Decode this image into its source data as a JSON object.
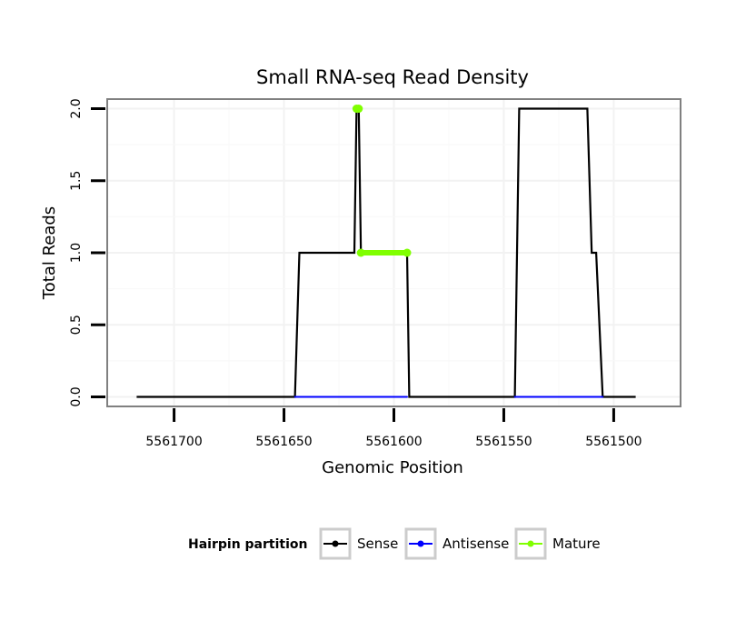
{
  "chart_data": {
    "type": "line",
    "title": "Small RNA-seq Read Density",
    "xlabel": "Genomic Position",
    "ylabel": "Total Reads",
    "x_reversed": true,
    "xlim": [
      5561730,
      5561470
    ],
    "ylim": [
      -0.06,
      2.06
    ],
    "x_ticks": [
      5561700,
      5561650,
      5561600,
      5561550,
      5561500
    ],
    "x_tick_labels": [
      "5561700",
      "5561650",
      "5561600",
      "5561550",
      "5561500"
    ],
    "y_ticks": [
      0,
      0.5,
      1,
      1.5,
      2
    ],
    "y_tick_labels": [
      "0.0",
      "0.5",
      "1.0",
      "1.5",
      "2.0"
    ],
    "grid": true,
    "legend": {
      "title": "Hairpin partition",
      "position": "bottom",
      "entries": [
        {
          "label": "Sense",
          "color": "#000000"
        },
        {
          "label": "Antisense",
          "color": "#0000ff"
        },
        {
          "label": "Mature",
          "color": "#80ff00"
        }
      ]
    },
    "series": [
      {
        "name": "Sense",
        "color": "#000000",
        "x": [
          5561717,
          5561645,
          5561643,
          5561618,
          5561617,
          5561616,
          5561615,
          5561594,
          5561593,
          5561545,
          5561543,
          5561512,
          5561510,
          5561508,
          5561505,
          5561490
        ],
        "y": [
          0,
          0,
          1,
          1,
          2,
          2,
          1,
          1,
          0,
          0,
          2,
          2,
          1,
          1,
          0,
          0
        ]
      },
      {
        "name": "Antisense",
        "color": "#0000ff",
        "segments": [
          {
            "x": [
              5561645,
              5561594
            ],
            "y": [
              0,
              0
            ]
          },
          {
            "x": [
              5561545,
              5561505
            ],
            "y": [
              0,
              0
            ]
          }
        ]
      },
      {
        "name": "Mature",
        "color": "#80ff00",
        "segments": [
          {
            "x": [
              5561617,
              5561616
            ],
            "y": [
              2,
              2
            ]
          },
          {
            "x": [
              5561615,
              5561594
            ],
            "y": [
              1,
              1
            ]
          }
        ]
      }
    ]
  }
}
